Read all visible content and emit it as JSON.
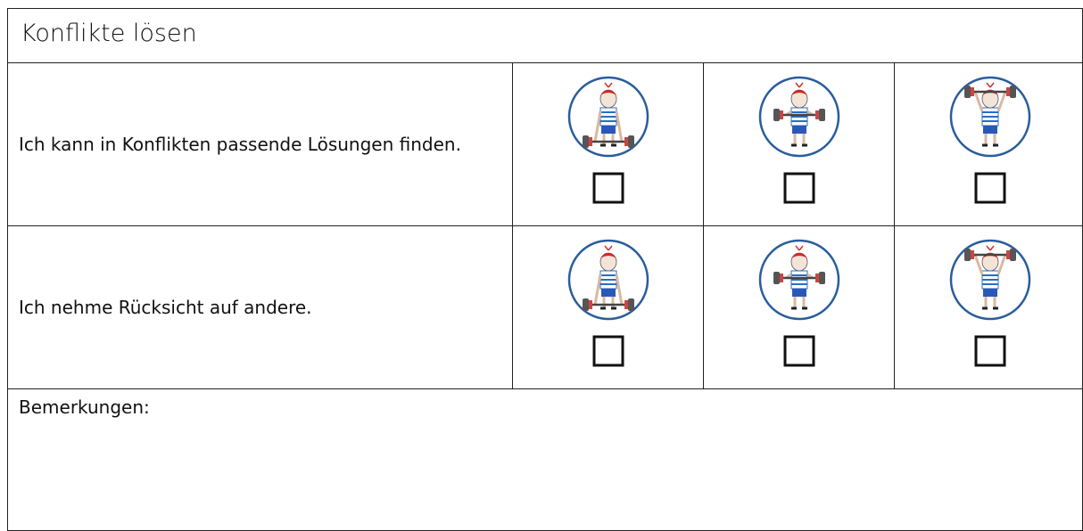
{
  "header": {
    "title": "Konflikte lösen"
  },
  "table": {
    "rows": [
      {
        "statement": "Ich kann in Konflikten passende Lösungen finden."
      },
      {
        "statement": "Ich nehme Rücksicht auf andere."
      }
    ]
  },
  "remarks": {
    "label": "Bemerkungen:"
  }
}
